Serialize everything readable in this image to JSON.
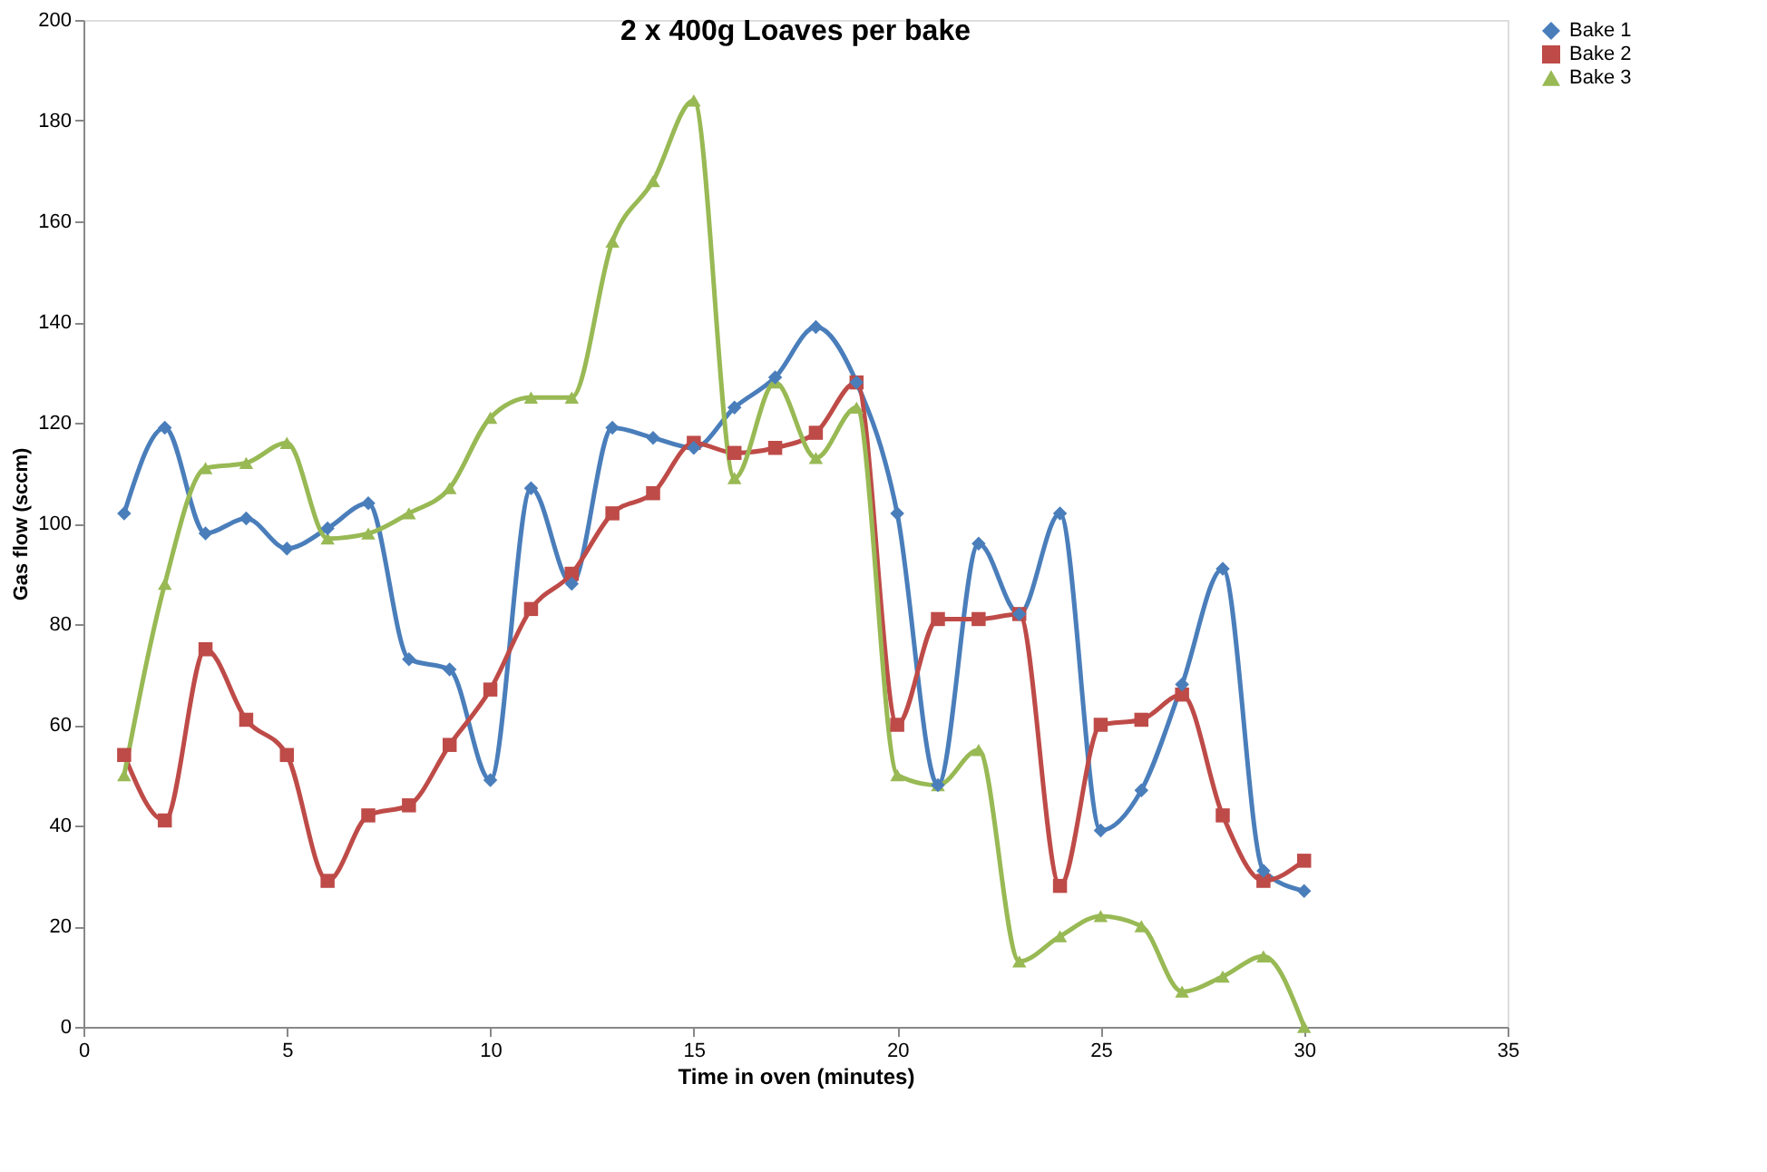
{
  "chart_data": {
    "type": "line",
    "title": "2 x 400g Loaves per bake",
    "xlabel": "Time in oven (minutes)",
    "ylabel": "Gas flow (sccm)",
    "x": [
      1,
      2,
      3,
      4,
      5,
      6,
      7,
      8,
      9,
      10,
      11,
      12,
      13,
      14,
      15,
      16,
      17,
      18,
      19,
      20,
      21,
      22,
      23,
      24,
      25,
      26,
      27,
      28,
      29,
      30
    ],
    "series": [
      {
        "name": "Bake 1",
        "color": "#4a7ebb",
        "marker": "diamond",
        "values": [
          102,
          119,
          98,
          101,
          95,
          99,
          104,
          73,
          71,
          49,
          107,
          88,
          119,
          117,
          115,
          123,
          129,
          139,
          128,
          102,
          48,
          96,
          82,
          102,
          39,
          47,
          68,
          91,
          31,
          27
        ]
      },
      {
        "name": "Bake 2",
        "color": "#be4b48",
        "marker": "square",
        "values": [
          54,
          41,
          75,
          61,
          54,
          29,
          42,
          44,
          56,
          67,
          83,
          90,
          102,
          106,
          116,
          114,
          115,
          118,
          128,
          60,
          81,
          81,
          82,
          28,
          60,
          61,
          66,
          42,
          29,
          33
        ]
      },
      {
        "name": "Bake 3",
        "color": "#98b954",
        "marker": "triangle",
        "values": [
          50,
          88,
          111,
          112,
          116,
          97,
          98,
          102,
          107,
          121,
          125,
          125,
          156,
          168,
          184,
          109,
          128,
          113,
          123,
          50,
          48,
          55,
          13,
          18,
          22,
          20,
          7,
          10,
          14,
          0
        ]
      }
    ],
    "xlim": [
      0,
      35
    ],
    "xticks": [
      0,
      5,
      10,
      15,
      20,
      25,
      30,
      35
    ],
    "ylim": [
      0,
      200
    ],
    "yticks": [
      0,
      20,
      40,
      60,
      80,
      100,
      120,
      140,
      160,
      180,
      200
    ],
    "grid": false,
    "legend": "right",
    "line_style": "solid"
  }
}
